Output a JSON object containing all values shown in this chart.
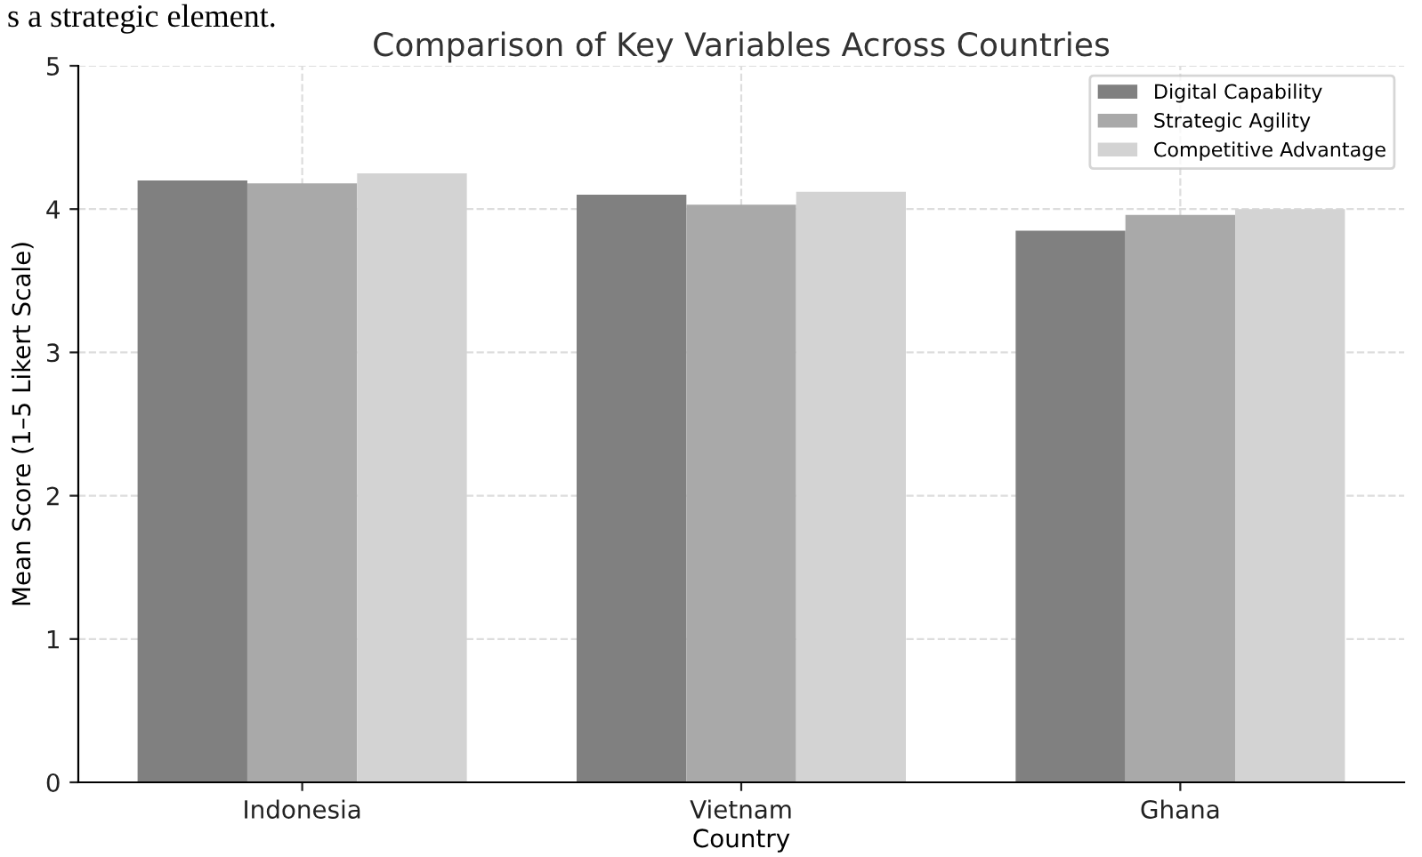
{
  "chart_data": {
    "type": "bar",
    "title": "Comparison of Key Variables Across Countries",
    "xlabel": "Country",
    "ylabel": "Mean Score (1–5 Likert Scale)",
    "categories": [
      "Indonesia",
      "Vietnam",
      "Ghana"
    ],
    "series": [
      {
        "name": "Digital Capability",
        "color": "#808080",
        "values": [
          4.2,
          4.1,
          3.85
        ]
      },
      {
        "name": "Strategic Agility",
        "color": "#a9a9a9",
        "values": [
          4.18,
          4.03,
          3.96
        ]
      },
      {
        "name": "Competitive Advantage",
        "color": "#d3d3d3",
        "values": [
          4.25,
          4.12,
          4.0
        ]
      }
    ],
    "ylim": [
      0,
      5
    ],
    "yticks": [
      0,
      1,
      2,
      3,
      4,
      5
    ],
    "grid": true,
    "legend": "top right",
    "annotations": [
      "s a strategic element."
    ]
  }
}
